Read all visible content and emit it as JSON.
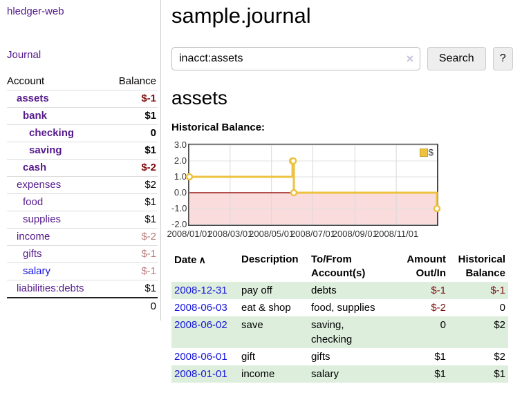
{
  "sidebar": {
    "app_title": "hledger-web",
    "nav": {
      "journal": "Journal"
    },
    "accounts": {
      "col_account": "Account",
      "col_balance": "Balance",
      "rows": [
        {
          "label": "assets",
          "depth": 0,
          "bold": true,
          "link_color": "purple",
          "balance": "$-1",
          "balance_style": "bold-negative"
        },
        {
          "label": "bank",
          "depth": 1,
          "bold": true,
          "link_color": "purple",
          "balance": "$1",
          "balance_style": "bold"
        },
        {
          "label": "checking",
          "depth": 2,
          "bold": true,
          "link_color": "purple",
          "balance": "0",
          "balance_style": "bold"
        },
        {
          "label": "saving",
          "depth": 2,
          "bold": true,
          "link_color": "purple",
          "balance": "$1",
          "balance_style": "bold"
        },
        {
          "label": "cash",
          "depth": 1,
          "bold": true,
          "link_color": "purple",
          "balance": "$-2",
          "balance_style": "bold-negative"
        },
        {
          "label": "expenses",
          "depth": 0,
          "bold": false,
          "link_color": "purple",
          "balance": "$2",
          "balance_style": "plain"
        },
        {
          "label": "food",
          "depth": 1,
          "bold": false,
          "link_color": "purple",
          "balance": "$1",
          "balance_style": "plain"
        },
        {
          "label": "supplies",
          "depth": 1,
          "bold": false,
          "link_color": "purple",
          "balance": "$1",
          "balance_style": "plain"
        },
        {
          "label": "income",
          "depth": 0,
          "bold": false,
          "link_color": "purple",
          "balance": "$-2",
          "balance_style": "soft-negative"
        },
        {
          "label": "gifts",
          "depth": 1,
          "bold": false,
          "link_color": "purple",
          "balance": "$-1",
          "balance_style": "soft-negative"
        },
        {
          "label": "salary",
          "depth": 1,
          "bold": false,
          "link_color": "blue",
          "balance": "$-1",
          "balance_style": "soft-negative"
        },
        {
          "label": "liabilities:debts",
          "depth": 0,
          "bold": false,
          "link_color": "purple",
          "balance": "$1",
          "balance_style": "plain"
        }
      ],
      "total": "0"
    }
  },
  "header": {
    "title": "sample.journal"
  },
  "search": {
    "value": "inacct:assets",
    "clear_icon": "✕",
    "button_label": "Search",
    "help_label": "?"
  },
  "main": {
    "account_heading": "assets",
    "chart_label": "Historical Balance:"
  },
  "chart_data": {
    "type": "line",
    "title": "Historical Balance:",
    "step": true,
    "xlim": [
      "2008-01-01",
      "2008-12-31"
    ],
    "ylim": [
      -2,
      3
    ],
    "y_ticks": [
      "3.0",
      "2.0",
      "1.0",
      "0.0",
      "-1.0",
      "-2.0"
    ],
    "x_ticks": [
      "2008/01/01",
      "2008/03/01",
      "2008/05/01",
      "2008/07/01",
      "2008/09/01",
      "2008/11/01"
    ],
    "series": [
      {
        "name": "$",
        "color": "#edc240",
        "points": [
          [
            "2008-01-01",
            1
          ],
          [
            "2008-06-01",
            2
          ],
          [
            "2008-06-02",
            2
          ],
          [
            "2008-06-03",
            0
          ],
          [
            "2008-12-31",
            -1
          ]
        ]
      }
    ],
    "negative_fill": "#fbdcdc",
    "zero_line_color": "#971616",
    "grid": true,
    "legend_position": "top-right"
  },
  "register": {
    "headers": {
      "date": "Date",
      "sort_icon": "∧",
      "description": "Description",
      "tofrom1": "To/From",
      "tofrom2": "Account(s)",
      "amount1": "Amount",
      "amount2": "Out/In",
      "hist1": "Historical",
      "hist2": "Balance"
    },
    "rows": [
      {
        "date": "2008-12-31",
        "description": "pay off",
        "accounts": "debts",
        "amount": "$-1",
        "amount_neg": true,
        "balance": "$-1",
        "balance_neg": true
      },
      {
        "date": "2008-06-03",
        "description": "eat & shop",
        "accounts": "food, supplies",
        "amount": "$-2",
        "amount_neg": true,
        "balance": "0",
        "balance_neg": false
      },
      {
        "date": "2008-06-02",
        "description": "save",
        "accounts": "saving, checking",
        "amount": "0",
        "amount_neg": false,
        "balance": "$2",
        "balance_neg": false
      },
      {
        "date": "2008-06-01",
        "description": "gift",
        "accounts": "gifts",
        "amount": "$1",
        "amount_neg": false,
        "balance": "$2",
        "balance_neg": false
      },
      {
        "date": "2008-01-01",
        "description": "income",
        "accounts": "salary",
        "amount": "$1",
        "amount_neg": false,
        "balance": "$1",
        "balance_neg": false
      }
    ]
  },
  "colors": {
    "link_purple": "#551a8b",
    "link_blue": "#1414dd",
    "negative_strong": "#7d0c0c",
    "negative_soft": "#b97c7c",
    "row_stripe_green": "#ddeedd",
    "series_gold": "#edc240",
    "chart_negative_area": "#fbdcdc",
    "chart_zero_line": "#971616"
  }
}
